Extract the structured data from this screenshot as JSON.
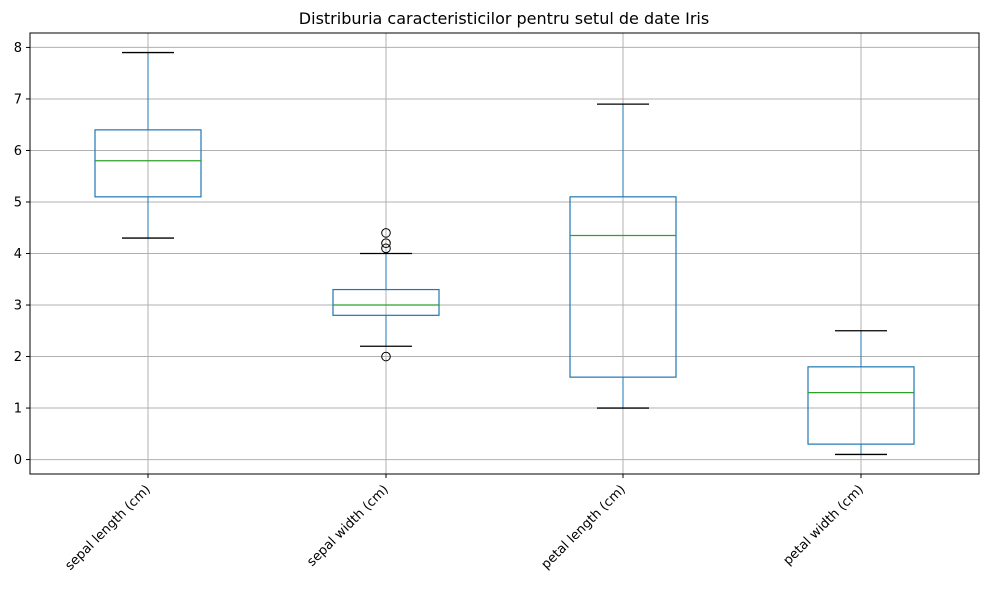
{
  "chart_data": {
    "type": "box",
    "title": "Distriburia caracteristicilor pentru setul de date Iris",
    "xlabel": "",
    "ylabel": "",
    "categories": [
      "sepal length (cm)",
      "sepal width (cm)",
      "petal length (cm)",
      "petal width (cm)"
    ],
    "boxes": [
      {
        "whisker_low": 4.3,
        "q1": 5.1,
        "median": 5.8,
        "q3": 6.4,
        "whisker_high": 7.9,
        "outliers": []
      },
      {
        "whisker_low": 2.2,
        "q1": 2.8,
        "median": 3.0,
        "q3": 3.3,
        "whisker_high": 4.0,
        "outliers": [
          4.4,
          4.1,
          4.2,
          2.0
        ]
      },
      {
        "whisker_low": 1.0,
        "q1": 1.6,
        "median": 4.35,
        "q3": 5.1,
        "whisker_high": 6.9,
        "outliers": []
      },
      {
        "whisker_low": 0.1,
        "q1": 0.3,
        "median": 1.3,
        "q3": 1.8,
        "whisker_high": 2.5,
        "outliers": []
      }
    ],
    "ylim": [
      -0.28,
      8.28
    ],
    "yticks": [
      0,
      1,
      2,
      3,
      4,
      5,
      6,
      7,
      8
    ],
    "grid": true,
    "legend": "none",
    "colors": {
      "box": "#1f77b4",
      "median": "#2ca02c",
      "whisker_cap": "#000000",
      "grid": "#b0b0b0",
      "outlier": "#000000"
    }
  }
}
